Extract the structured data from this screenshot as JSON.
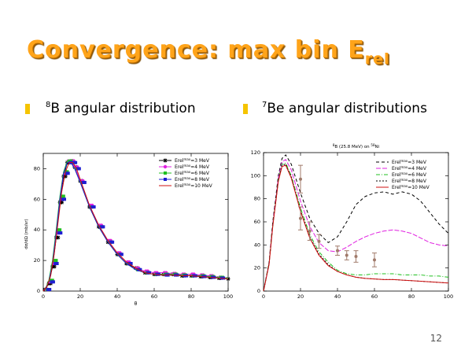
{
  "slide": {
    "title_main": "Convergence: max bin E",
    "title_sub": "rel",
    "left_heading_sup": "8",
    "left_heading_text": "B angular distribution",
    "right_heading_sup": "7",
    "right_heading_text": "Be angular distributions",
    "page_number": "12",
    "colors": {
      "title": "#ffa41a",
      "bullet": "#f5c400"
    }
  },
  "chart_data": [
    {
      "type": "line",
      "title": "",
      "xlabel": "θ",
      "ylabel": "dσ/dΩ (mb/sr)",
      "xlim": [
        0,
        100
      ],
      "ylim": [
        0,
        90
      ],
      "xticks": [
        "0",
        "20",
        "40",
        "60",
        "80",
        "100"
      ],
      "yticks": [
        "0",
        "20",
        "40",
        "60",
        "80"
      ],
      "legend_position": "top-right",
      "series": [
        {
          "name": "Erel^max=3 MeV",
          "sup": "max",
          "color": "#000000",
          "marker": "star",
          "x": [
            1,
            3,
            5,
            7,
            9,
            11,
            13,
            15,
            17,
            20,
            25,
            30,
            35,
            40,
            45,
            50,
            55,
            60,
            65,
            70,
            75,
            80,
            85,
            90,
            95,
            100
          ],
          "y": [
            1,
            5,
            16,
            35,
            58,
            75,
            84,
            85,
            81,
            72,
            55,
            42,
            32,
            24,
            18,
            15,
            12,
            11,
            11,
            11,
            10,
            10,
            9.5,
            9,
            8.5,
            8
          ]
        },
        {
          "name": "Erel^max=4 MeV",
          "sup": "max",
          "color": "#e020e0",
          "marker": "circle",
          "x": [
            1,
            3,
            5,
            7,
            9,
            11,
            13,
            15,
            17,
            20,
            25,
            30,
            35,
            40,
            45,
            50,
            55,
            60,
            65,
            70,
            75,
            80,
            85,
            90,
            95,
            100
          ],
          "y": [
            1,
            6,
            18,
            38,
            60,
            77,
            85,
            85,
            81,
            72,
            56,
            43,
            33,
            25,
            19,
            15,
            13,
            12,
            12,
            11.5,
            11,
            11,
            10.5,
            10,
            9,
            8.5
          ]
        },
        {
          "name": "Erel^max=6 MeV",
          "sup": "max",
          "color": "#20c020",
          "marker": "square",
          "x": [
            1,
            3,
            5,
            7,
            9,
            11,
            13,
            15,
            17,
            20,
            25,
            30,
            35,
            40,
            45,
            50,
            55,
            60,
            65,
            70,
            75,
            80,
            85,
            90,
            95,
            100
          ],
          "y": [
            1,
            7,
            20,
            40,
            62,
            78,
            85,
            84,
            80,
            71,
            55,
            42,
            32,
            24,
            18,
            14,
            12,
            11,
            11,
            11,
            10.5,
            10,
            10,
            9.5,
            9,
            8.5
          ]
        },
        {
          "name": "Erel^max=8 MeV",
          "sup": "max",
          "color": "#1e1ed2",
          "marker": "square",
          "x": [
            1,
            3,
            5,
            7,
            9,
            11,
            13,
            15,
            17,
            20,
            25,
            30,
            35,
            40,
            45,
            50,
            55,
            60,
            65,
            70,
            75,
            80,
            85,
            90,
            95,
            100
          ],
          "y": [
            1,
            6,
            18,
            38,
            60,
            77,
            84,
            84,
            80,
            71,
            55,
            42,
            32,
            24,
            18,
            14,
            12,
            11,
            10.5,
            10.5,
            10,
            10,
            9.5,
            9,
            8.5,
            8
          ]
        },
        {
          "name": "Erel^max=10 MeV",
          "sup": "max",
          "color": "#d01010",
          "marker": "none",
          "x": [
            0,
            2,
            4,
            6,
            8,
            10,
            12,
            14,
            16,
            18,
            20,
            25,
            30,
            35,
            40,
            45,
            50,
            55,
            60,
            65,
            70,
            75,
            80,
            85,
            90,
            95,
            100
          ],
          "y": [
            0,
            3,
            10,
            25,
            45,
            65,
            78,
            84,
            84,
            80,
            73,
            56,
            43,
            33,
            25,
            19,
            15,
            12,
            11,
            10.5,
            10.5,
            10,
            10,
            9.5,
            9,
            8.5,
            8
          ]
        }
      ]
    },
    {
      "type": "line",
      "title_sup_a": "8",
      "title_mid": "B (25.8 MeV) on ",
      "title_sup_b": "58",
      "title_end": "Ni",
      "xlabel": "",
      "ylabel": "",
      "xlim": [
        0,
        100
      ],
      "ylim": [
        0,
        120
      ],
      "xticks": [
        "0",
        "20",
        "40",
        "60",
        "80",
        "100"
      ],
      "yticks": [
        "0",
        "20",
        "40",
        "60",
        "80",
        "100",
        "120"
      ],
      "legend_position": "top-right",
      "series": [
        {
          "name": "Erel^max=3 MeV",
          "sup": "max",
          "color": "#000000",
          "dash": "4,3",
          "x": [
            0,
            3,
            5,
            8,
            10,
            12,
            15,
            20,
            25,
            30,
            35,
            40,
            45,
            50,
            55,
            60,
            65,
            70,
            75,
            80,
            85,
            90,
            95,
            100
          ],
          "y": [
            0,
            25,
            60,
            100,
            115,
            118,
            110,
            85,
            63,
            50,
            42,
            47,
            60,
            75,
            82,
            85,
            86,
            84,
            86,
            84,
            78,
            68,
            58,
            50
          ]
        },
        {
          "name": "Erel^max=4 MeV",
          "sup": "max",
          "color": "#e020e0",
          "dash": "6,2",
          "x": [
            0,
            3,
            5,
            8,
            10,
            12,
            15,
            20,
            25,
            30,
            35,
            40,
            45,
            50,
            55,
            60,
            65,
            70,
            75,
            80,
            85,
            90,
            95,
            100
          ],
          "y": [
            0,
            24,
            58,
            98,
            112,
            114,
            105,
            78,
            56,
            42,
            35,
            34,
            38,
            43,
            47,
            50,
            52,
            53,
            52,
            50,
            46,
            42,
            40,
            39
          ]
        },
        {
          "name": "Erel^max=6 MeV",
          "sup": "max",
          "color": "#20c020",
          "dash": "5,2,1,2",
          "x": [
            0,
            3,
            5,
            8,
            10,
            12,
            15,
            20,
            25,
            30,
            35,
            40,
            45,
            50,
            55,
            60,
            65,
            70,
            75,
            80,
            85,
            90,
            95,
            100
          ],
          "y": [
            0,
            24,
            57,
            96,
            110,
            111,
            100,
            72,
            49,
            34,
            25,
            18,
            15,
            14,
            14,
            15,
            15,
            15,
            14,
            14,
            14,
            13,
            13,
            12
          ]
        },
        {
          "name": "Erel^max=8 MeV",
          "sup": "max",
          "color": "#000000",
          "dash": "2,2",
          "x": [
            0,
            3,
            5,
            8,
            10,
            12,
            15,
            20,
            25,
            30,
            35,
            40,
            45,
            50,
            55,
            60,
            65,
            70,
            75,
            80,
            85,
            90,
            95,
            100
          ],
          "y": [
            0,
            24,
            57,
            96,
            109,
            110,
            99,
            70,
            47,
            32,
            23,
            17,
            14,
            12,
            11,
            10.5,
            10,
            10,
            9.5,
            9,
            8.5,
            8,
            7.5,
            7
          ]
        },
        {
          "name": "Erel^max=10 MeV",
          "sup": "max",
          "color": "#d01010",
          "dash": "",
          "x": [
            0,
            3,
            5,
            8,
            10,
            12,
            15,
            20,
            25,
            30,
            35,
            40,
            45,
            50,
            55,
            60,
            65,
            70,
            75,
            80,
            85,
            90,
            95,
            100
          ],
          "y": [
            0,
            23,
            56,
            95,
            108,
            109,
            98,
            69,
            46,
            31,
            22,
            17,
            14,
            12,
            11,
            10.5,
            10,
            10,
            9.5,
            9,
            8.5,
            8,
            7.5,
            7
          ]
        }
      ],
      "experimental_points": [
        {
          "x": 20,
          "y": 97,
          "err": 12
        },
        {
          "x": 20,
          "y": 63,
          "err": 10
        },
        {
          "x": 25,
          "y": 52,
          "err": 8
        },
        {
          "x": 30,
          "y": 43,
          "err": 6
        },
        {
          "x": 40,
          "y": 35,
          "err": 4
        },
        {
          "x": 45,
          "y": 31,
          "err": 4
        },
        {
          "x": 50,
          "y": 30,
          "err": 5
        },
        {
          "x": 60,
          "y": 27,
          "err": 6
        }
      ],
      "experimental_color": "#a07a6a"
    }
  ]
}
